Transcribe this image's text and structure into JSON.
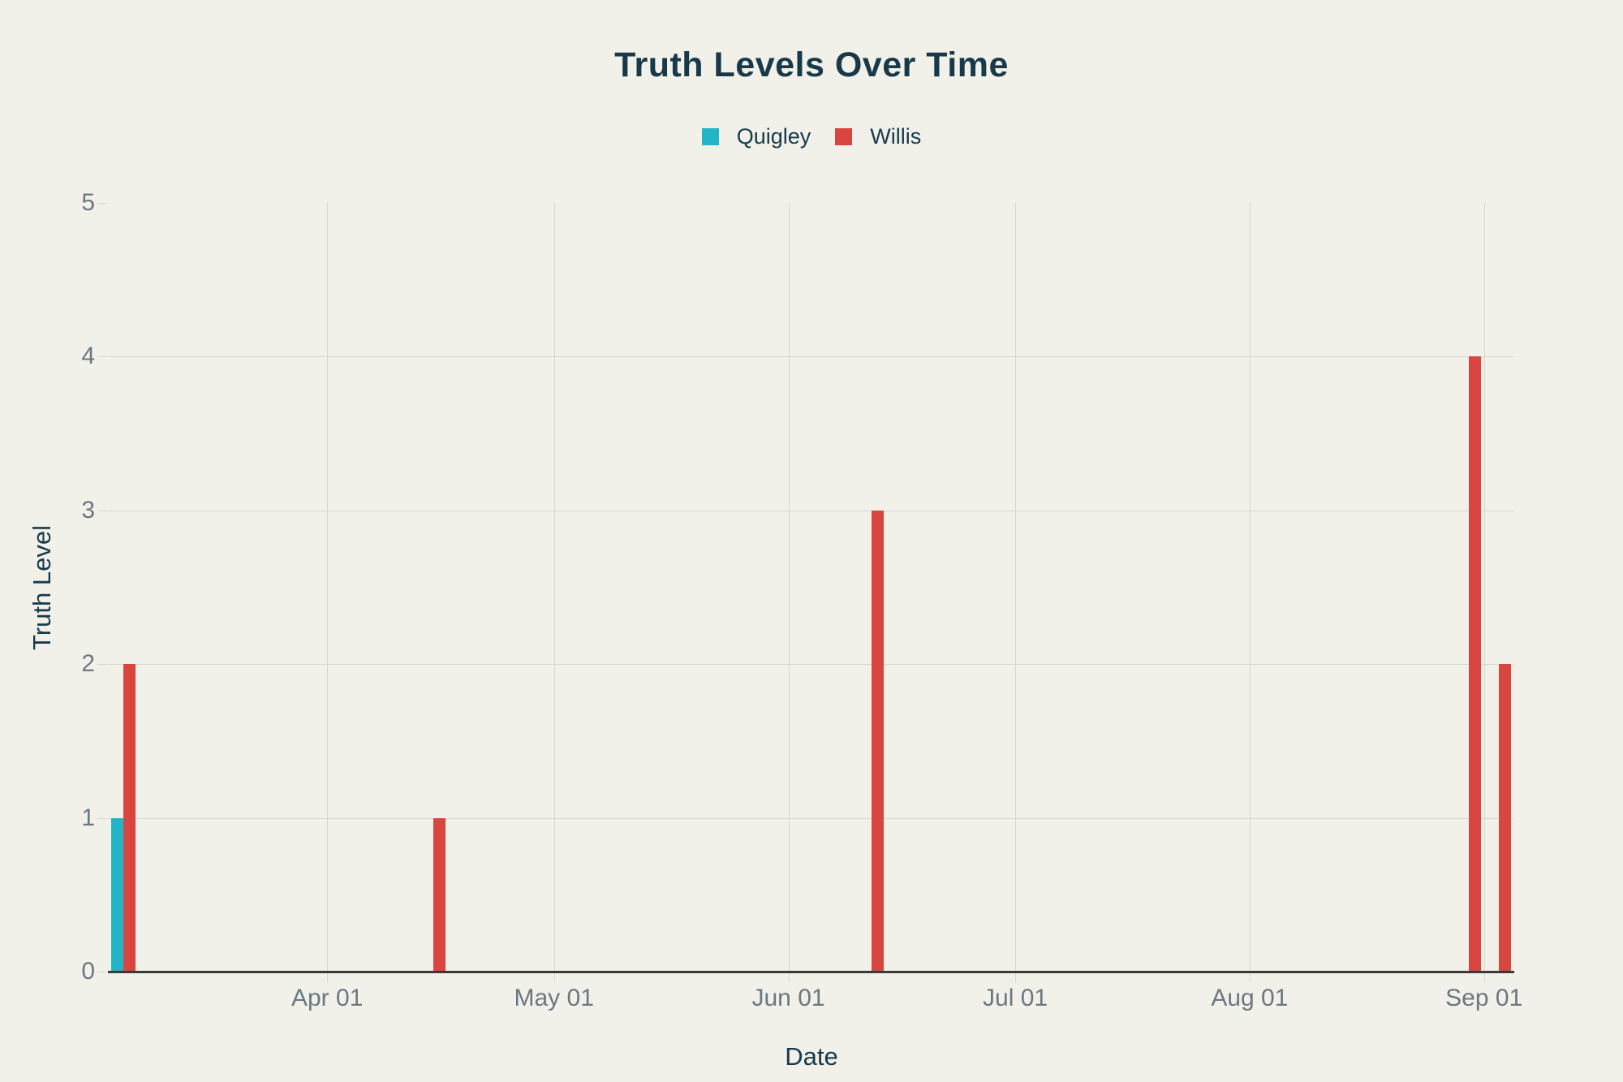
{
  "title": "Truth Levels Over Time",
  "colors": {
    "background": "#f1f0e9",
    "heading_text": "#17394a",
    "tick_text": "#6b7881",
    "gridline": "#d8d7cf",
    "axis_line": "#3b3a38",
    "quigley": "#22b5c7",
    "willis": "#d9453f"
  },
  "chart_data": {
    "type": "bar",
    "bar_mode": "group",
    "title": "Truth Levels Over Time",
    "xlabel": "Date",
    "ylabel": "Truth Level",
    "ylim": [
      0,
      5
    ],
    "y_ticks": [
      0,
      1,
      2,
      3,
      4,
      5
    ],
    "y_tick_labels": [
      "0",
      "1",
      "2",
      "3",
      "4",
      "5"
    ],
    "x_tick_labels": [
      "Apr 01",
      "May 01",
      "Jun 01",
      "Jul 01",
      "Aug 01",
      "Sep 01"
    ],
    "x_range": [
      "Mar 03",
      "Sep 05"
    ],
    "grid": true,
    "legend_position": "top-center",
    "series": [
      {
        "name": "Quigley",
        "color": "#22b5c7",
        "points": [
          {
            "date": "Mar 05",
            "value": 1
          }
        ]
      },
      {
        "name": "Willis",
        "color": "#d9453f",
        "points": [
          {
            "date": "Mar 05",
            "value": 2
          },
          {
            "date": "Apr 15",
            "value": 1
          },
          {
            "date": "Jun 12",
            "value": 3
          },
          {
            "date": "Aug 30",
            "value": 4
          },
          {
            "date": "Sep 03",
            "value": 2
          }
        ]
      }
    ]
  }
}
